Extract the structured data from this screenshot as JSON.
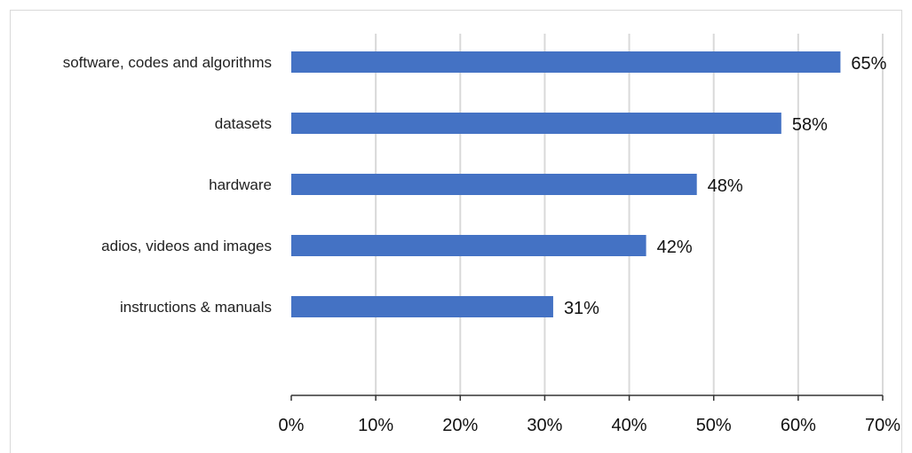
{
  "chart_data": {
    "type": "bar",
    "orientation": "horizontal",
    "categories": [
      "software, codes and algorithms",
      "datasets",
      "hardware",
      "adios, videos and images",
      "instructions & manuals"
    ],
    "values": [
      65,
      58,
      48,
      42,
      31
    ],
    "value_labels": [
      "65%",
      "58%",
      "48%",
      "42%",
      "31%"
    ],
    "xlim": [
      0,
      70
    ],
    "xticks": [
      0,
      10,
      20,
      30,
      40,
      50,
      60,
      70
    ],
    "xtick_labels": [
      "0%",
      "10%",
      "20%",
      "30%",
      "40%",
      "50%",
      "60%",
      "70%"
    ],
    "grid": "vertical",
    "bar_color": "#4472c4",
    "grid_color": "#d9d9d9",
    "axis_color": "#333333",
    "legend": "none"
  }
}
